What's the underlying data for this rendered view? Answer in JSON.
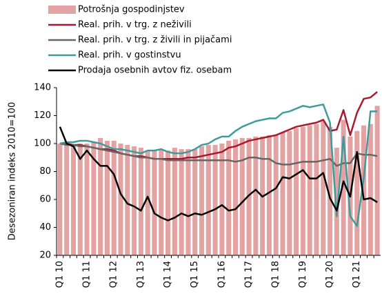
{
  "chart_data": {
    "type": "bar_line",
    "ylabel": "Desezoniran indeks 2010=100",
    "categories": [
      "Q1 10",
      null,
      null,
      null,
      "Q1 11",
      null,
      null,
      null,
      "Q1 12",
      null,
      null,
      null,
      "Q1 13",
      null,
      null,
      null,
      "Q1 14",
      null,
      null,
      null,
      "Q1 15",
      null,
      null,
      null,
      "Q1 16",
      null,
      null,
      null,
      "Q1 17",
      null,
      null,
      null,
      "Q1 18",
      null,
      null,
      null,
      "Q1 19",
      null,
      null,
      null,
      "Q1 20",
      null,
      null,
      null,
      "Q1 21",
      null,
      null,
      null
    ],
    "ylim": [
      20,
      140
    ],
    "yticks": [
      20,
      40,
      60,
      80,
      100,
      120,
      140
    ],
    "series": [
      {
        "name": "Potrošnja gospodinjstev",
        "kind": "bar",
        "color": "#e3a3a3",
        "values": [
          100,
          100,
          99,
          100,
          100,
          101,
          104,
          102,
          102,
          100,
          99,
          98,
          97,
          95,
          95,
          96,
          95,
          97,
          96,
          96,
          96,
          98,
          99,
          99,
          100,
          102,
          103,
          104,
          104,
          105,
          105,
          106,
          106,
          108,
          109,
          111,
          112,
          113,
          114,
          116,
          112,
          97,
          117,
          105,
          109,
          113,
          114,
          127
        ]
      },
      {
        "name": "Real. prih. v trg. z neživili",
        "kind": "line",
        "color": "#a6192e",
        "values": [
          100,
          100,
          99,
          99,
          98,
          97,
          96,
          96,
          95,
          93,
          92,
          91,
          91,
          90,
          89,
          89,
          89,
          89,
          89,
          90,
          90,
          91,
          92,
          93,
          94,
          97,
          98,
          100,
          102,
          103,
          104,
          105,
          106,
          108,
          110,
          112,
          113,
          114,
          115,
          117,
          109,
          110,
          124,
          106,
          122,
          132,
          133,
          137
        ]
      },
      {
        "name": "Real. prih. v trg. z živili in pijačami",
        "kind": "line",
        "color": "#666666",
        "values": [
          100,
          99,
          99,
          98,
          98,
          97,
          96,
          95,
          94,
          93,
          92,
          91,
          90,
          90,
          89,
          89,
          88,
          88,
          88,
          88,
          88,
          88,
          88,
          88,
          88,
          88,
          87,
          88,
          90,
          90,
          89,
          89,
          86,
          85,
          85,
          86,
          87,
          87,
          87,
          88,
          89,
          84,
          86,
          86,
          93,
          92,
          92,
          91
        ]
      },
      {
        "name": "Real. prih. v gostinstvu",
        "kind": "line",
        "color": "#3f9b9b",
        "values": [
          100,
          101,
          101,
          102,
          102,
          101,
          100,
          98,
          96,
          96,
          95,
          94,
          93,
          95,
          95,
          96,
          94,
          93,
          93,
          94,
          96,
          99,
          100,
          103,
          105,
          105,
          109,
          112,
          114,
          116,
          117,
          118,
          118,
          122,
          123,
          125,
          127,
          126,
          127,
          128,
          115,
          48,
          105,
          48,
          41,
          75,
          123,
          123
        ]
      },
      {
        "name": "Prodaja osebnih avtov fiz. osebam",
        "kind": "line",
        "color": "#000000",
        "values": [
          112,
          100,
          98,
          89,
          95,
          89,
          84,
          84,
          78,
          64,
          57,
          55,
          52,
          62,
          50,
          47,
          45,
          47,
          50,
          48,
          50,
          49,
          51,
          53,
          56,
          52,
          53,
          58,
          63,
          67,
          62,
          65,
          68,
          76,
          75,
          78,
          81,
          75,
          75,
          79,
          61,
          52,
          73,
          62,
          94,
          60,
          61,
          58
        ]
      }
    ]
  }
}
